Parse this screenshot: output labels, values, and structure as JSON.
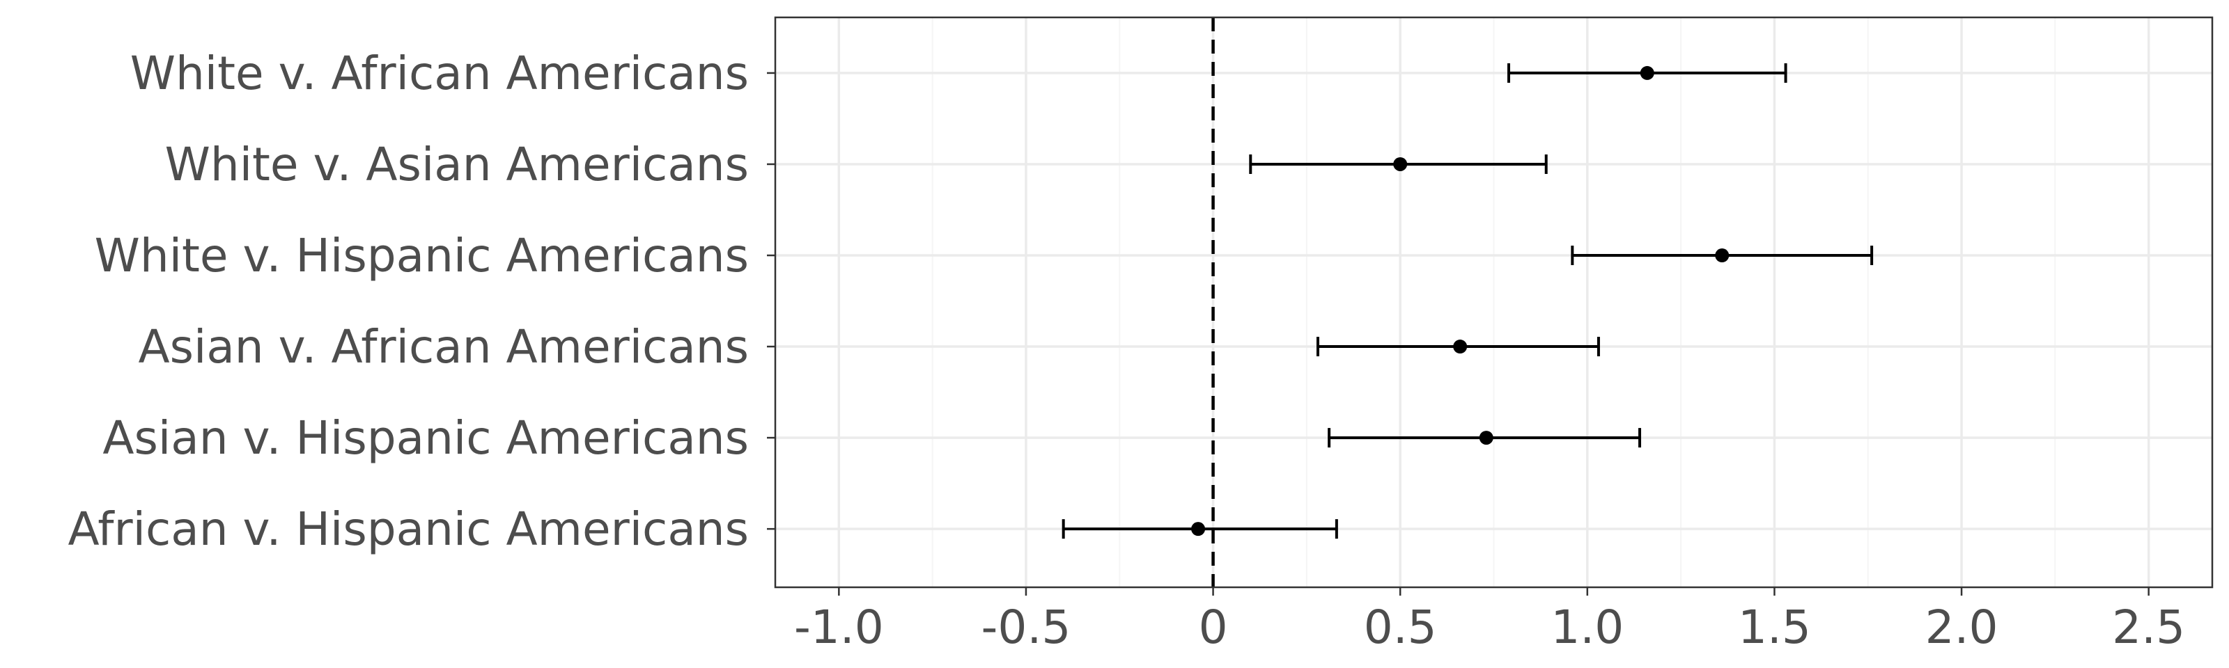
{
  "chart_data": {
    "type": "scatter",
    "style": "dot-and-whisker",
    "title": "",
    "xlabel": "",
    "ylabel": "",
    "xlim": [
      -1.17,
      2.67
    ],
    "x_ticks": [
      -1.0,
      -0.5,
      0,
      0.5,
      1.0,
      1.5,
      2.0,
      2.5
    ],
    "x_tick_labels": [
      "-1.0",
      "-0.5",
      "0",
      "0.5",
      "1.0",
      "1.5",
      "2.0",
      "2.5"
    ],
    "reference_line": {
      "x": 0,
      "style": "dashed"
    },
    "grid": true,
    "legend": "none",
    "categories": [
      "White v. African Americans",
      "White v. Asian Americans",
      "White v. Hispanic Americans",
      "Asian v. African Americans",
      "Asian v. Hispanic Americans",
      "African v. Hispanic Americans"
    ],
    "estimates": [
      1.16,
      0.5,
      1.36,
      0.66,
      0.73,
      -0.04
    ],
    "lower": [
      0.79,
      0.1,
      0.96,
      0.28,
      0.31,
      -0.4
    ],
    "upper": [
      1.53,
      0.89,
      1.76,
      1.03,
      1.14,
      0.33
    ],
    "colors": {
      "point": "#000000",
      "panel_border": "#333333",
      "grid_major": "#ebebeb",
      "grid_minor": "#f5f5f5",
      "text": "#4d4d4d"
    }
  }
}
